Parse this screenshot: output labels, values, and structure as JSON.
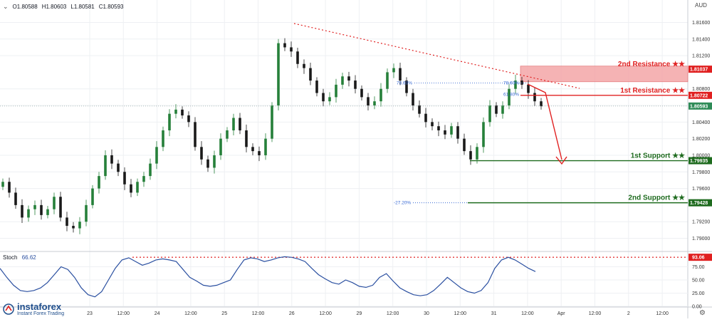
{
  "header": {
    "ohlc_open": "O1.80588",
    "ohlc_high": "H1.80603",
    "ohlc_low": "L1.80581",
    "ohlc_close": "C1.80593",
    "currency": "AUD"
  },
  "stoch": {
    "label": "Stoch",
    "value": "66.62"
  },
  "brand": {
    "name": "instaforex",
    "tagline": "Instant Forex Trading"
  },
  "colors": {
    "bull": "#26803a",
    "bear": "#1a1a1a",
    "resistance": "#e02020",
    "support": "#1e6b1e",
    "stoch_line": "#2a4fa0",
    "zone": "#f4a6a8",
    "fib": "#3a6bd4",
    "current": "#2e8b57"
  },
  "chart_data": {
    "type": "candlestick",
    "ylim": [
      1.7885,
      1.8175
    ],
    "y_ticks": [
      "1.81600",
      "1.81400",
      "1.81200",
      "1.80800",
      "1.80600",
      "1.80400",
      "1.80200",
      "1.80000",
      "1.79800",
      "1.79600",
      "1.79200",
      "1.79000"
    ],
    "x_ticks": [
      "23",
      "12:00",
      "24",
      "12:00",
      "25",
      "12:00",
      "26",
      "12:00",
      "29",
      "12:00",
      "30",
      "12:00",
      "31",
      "12:00",
      "Apr",
      "12:00",
      "2",
      "12:00"
    ],
    "close_series": [
      1.7968,
      1.7955,
      1.794,
      1.7925,
      1.7935,
      1.794,
      1.7928,
      1.7935,
      1.795,
      1.7925,
      1.7915,
      1.7912,
      1.792,
      1.794,
      1.796,
      1.7975,
      1.8,
      1.799,
      1.798,
      1.7965,
      1.7955,
      1.7968,
      1.7975,
      1.799,
      1.801,
      1.803,
      1.805,
      1.8055,
      1.8048,
      1.804,
      1.801,
      1.7995,
      1.7985,
      1.8,
      1.802,
      1.803,
      1.8045,
      1.803,
      1.801,
      1.8005,
      1.8,
      1.802,
      1.806,
      1.8135,
      1.813,
      1.8125,
      1.811,
      1.8105,
      1.809,
      1.8075,
      1.8065,
      1.807,
      1.8085,
      1.8095,
      1.809,
      1.808,
      1.807,
      1.806,
      1.8065,
      1.808,
      1.81,
      1.8105,
      1.809,
      1.8075,
      1.806,
      1.805,
      1.804,
      1.8035,
      1.803,
      1.8025,
      1.8035,
      1.802,
      1.8005,
      1.7995,
      1.801,
      1.804,
      1.806,
      1.805,
      1.806,
      1.808,
      1.809,
      1.8085,
      1.8075,
      1.8065,
      1.8059
    ],
    "annotations": [
      {
        "name": "2nd Resistance",
        "label": "2nd Resistance ★★",
        "price_label": "1.81037",
        "price": 1.81037,
        "kind": "resistance_zone",
        "zone": [
          1.8092,
          1.8104
        ]
      },
      {
        "name": "1st Resistance",
        "label": "1st Resistance ★★",
        "price_label": "1.80722",
        "price": 1.80722,
        "kind": "resistance"
      },
      {
        "name": "Current",
        "price_label": "1.80593",
        "price": 1.80593,
        "kind": "current"
      },
      {
        "name": "1st Support",
        "label": "1st Support ★★",
        "price_label": "1.79935",
        "price": 1.79935,
        "kind": "support"
      },
      {
        "name": "2nd Support",
        "label": "2nd Support ★★",
        "price_label": "1.79428",
        "price": 1.79428,
        "kind": "support"
      }
    ],
    "fib_labels": [
      "78.60%",
      "78.60%",
      "61.80%",
      "-27.20%"
    ],
    "stoch_series": [
      72,
      55,
      40,
      30,
      28,
      30,
      35,
      45,
      60,
      75,
      70,
      55,
      35,
      22,
      18,
      28,
      50,
      72,
      88,
      92,
      85,
      78,
      82,
      88,
      90,
      88,
      85,
      70,
      55,
      48,
      40,
      38,
      40,
      45,
      50,
      70,
      88,
      92,
      90,
      85,
      88,
      92,
      94,
      93,
      90,
      85,
      72,
      60,
      52,
      45,
      42,
      50,
      45,
      38,
      36,
      40,
      55,
      62,
      48,
      35,
      28,
      22,
      20,
      22,
      30,
      42,
      55,
      45,
      35,
      28,
      25,
      30,
      45,
      72,
      88,
      93,
      88,
      80,
      72,
      66
    ],
    "stoch_ylim": [
      0,
      100
    ],
    "stoch_ticks": [
      "75.00",
      "50.00",
      "25.00",
      "0.00"
    ],
    "stoch_level": {
      "price_label": "93.06",
      "value": 93.06
    }
  }
}
